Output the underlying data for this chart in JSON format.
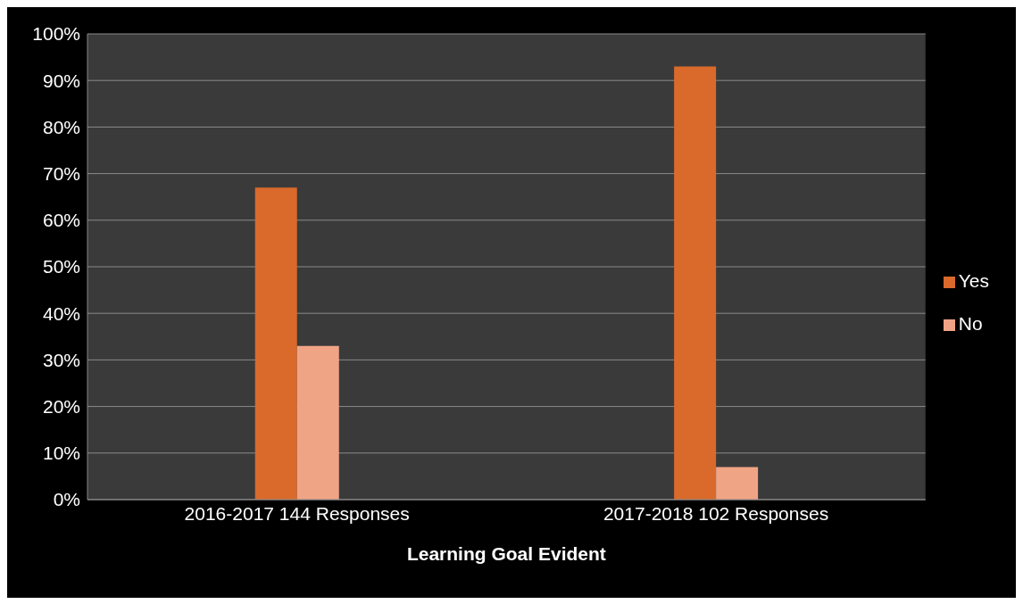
{
  "chart_data": {
    "type": "bar",
    "xlabel": "Learning Goal Evident",
    "categories": [
      "2016-2017    144 Responses",
      "2017-2018    102 Responses"
    ],
    "series": [
      {
        "name": "Yes",
        "color": "#d96a2b",
        "values": [
          67,
          93
        ]
      },
      {
        "name": "No",
        "color": "#f0a486",
        "values": [
          33,
          7
        ]
      }
    ],
    "ylim": [
      0,
      100
    ],
    "yticks": [
      {
        "value": 0,
        "label": "0%"
      },
      {
        "value": 10,
        "label": "10%"
      },
      {
        "value": 20,
        "label": "20%"
      },
      {
        "value": 30,
        "label": "30%"
      },
      {
        "value": 40,
        "label": "40%"
      },
      {
        "value": 50,
        "label": "50%"
      },
      {
        "value": 60,
        "label": "60%"
      },
      {
        "value": 70,
        "label": "70%"
      },
      {
        "value": 80,
        "label": "80%"
      },
      {
        "value": 90,
        "label": "90%"
      },
      {
        "value": 100,
        "label": "100%"
      }
    ],
    "grid": "y",
    "legend": "right"
  }
}
